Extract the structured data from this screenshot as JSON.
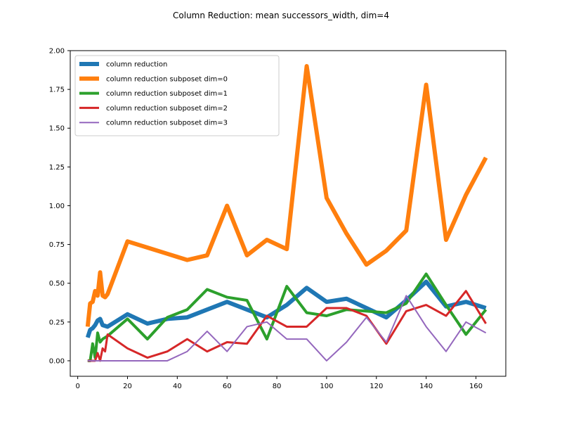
{
  "chart_data": {
    "type": "line",
    "title": "Column Reduction: mean successors_width, dim=4",
    "xlabel": "",
    "ylabel": "",
    "xlim": [
      -3.0,
      172.0
    ],
    "ylim": [
      -0.1,
      2.0
    ],
    "x_ticks": [
      0,
      20,
      40,
      60,
      80,
      100,
      120,
      140,
      160
    ],
    "y_ticks": [
      0.0,
      0.25,
      0.5,
      0.75,
      1.0,
      1.25,
      1.5,
      1.75,
      2.0
    ],
    "x_tick_labels": [
      "0",
      "20",
      "40",
      "60",
      "80",
      "100",
      "120",
      "140",
      "160"
    ],
    "y_tick_labels": [
      "0.00",
      "0.25",
      "0.50",
      "0.75",
      "1.00",
      "1.25",
      "1.50",
      "1.75",
      "2.00"
    ],
    "grid": false,
    "legend_position": "top-left",
    "series": [
      {
        "name": "column reduction",
        "color": "#1f77b4",
        "width": 6,
        "x": [
          4,
          5,
          6,
          7,
          8,
          9,
          10,
          12,
          20,
          28,
          36,
          44,
          52,
          60,
          68,
          76,
          84,
          92,
          100,
          108,
          116,
          124,
          132,
          140,
          148,
          156,
          164
        ],
        "y": [
          0.15,
          0.2,
          0.21,
          0.23,
          0.26,
          0.27,
          0.23,
          0.22,
          0.3,
          0.24,
          0.27,
          0.28,
          0.33,
          0.38,
          0.33,
          0.28,
          0.36,
          0.47,
          0.38,
          0.4,
          0.34,
          0.28,
          0.39,
          0.51,
          0.35,
          0.38,
          0.34
        ]
      },
      {
        "name": "column reduction subposet dim=0",
        "color": "#ff7f0e",
        "width": 6,
        "x": [
          4,
          5,
          6,
          7,
          8,
          9,
          10,
          11,
          12,
          20,
          28,
          36,
          44,
          52,
          60,
          68,
          76,
          84,
          92,
          100,
          108,
          116,
          124,
          132,
          140,
          148,
          156,
          164
        ],
        "y": [
          0.22,
          0.37,
          0.38,
          0.45,
          0.42,
          0.57,
          0.42,
          0.41,
          0.43,
          0.77,
          0.73,
          0.69,
          0.65,
          0.68,
          1.0,
          0.68,
          0.78,
          0.72,
          1.9,
          1.05,
          0.82,
          0.62,
          0.71,
          0.84,
          1.78,
          0.78,
          1.07,
          1.31
        ]
      },
      {
        "name": "column reduction subposet dim=1",
        "color": "#2ca02c",
        "width": 4,
        "x": [
          4,
          5,
          6,
          7,
          8,
          9,
          10,
          12,
          20,
          28,
          36,
          44,
          52,
          60,
          68,
          76,
          84,
          92,
          100,
          108,
          116,
          124,
          132,
          140,
          148,
          156,
          164
        ],
        "y": [
          0.0,
          0.0,
          0.11,
          0.02,
          0.18,
          0.12,
          0.14,
          0.16,
          0.27,
          0.14,
          0.28,
          0.33,
          0.46,
          0.41,
          0.39,
          0.14,
          0.48,
          0.31,
          0.29,
          0.33,
          0.32,
          0.31,
          0.37,
          0.56,
          0.36,
          0.17,
          0.33
        ]
      },
      {
        "name": "column reduction subposet dim=2",
        "color": "#d62728",
        "width": 3,
        "x": [
          4,
          5,
          6,
          7,
          8,
          9,
          10,
          11,
          12,
          20,
          28,
          36,
          44,
          52,
          60,
          68,
          76,
          84,
          92,
          100,
          108,
          116,
          124,
          132,
          140,
          148,
          156,
          164
        ],
        "y": [
          0.0,
          0.0,
          0.0,
          0.0,
          0.05,
          0.0,
          0.08,
          0.06,
          0.17,
          0.08,
          0.02,
          0.06,
          0.14,
          0.06,
          0.12,
          0.11,
          0.29,
          0.22,
          0.22,
          0.34,
          0.34,
          0.29,
          0.11,
          0.32,
          0.36,
          0.29,
          0.45,
          0.24
        ]
      },
      {
        "name": "column reduction subposet dim=3",
        "color": "#9467bd",
        "width": 2,
        "x": [
          4,
          5,
          6,
          7,
          8,
          9,
          10,
          12,
          20,
          28,
          36,
          44,
          52,
          60,
          68,
          76,
          84,
          92,
          100,
          108,
          116,
          124,
          132,
          140,
          148,
          156,
          164
        ],
        "y": [
          0.0,
          0.0,
          0.0,
          0.0,
          0.0,
          0.0,
          0.0,
          0.0,
          0.0,
          0.0,
          0.0,
          0.06,
          0.19,
          0.06,
          0.22,
          0.25,
          0.14,
          0.14,
          0.0,
          0.12,
          0.28,
          0.12,
          0.42,
          0.22,
          0.06,
          0.25,
          0.18
        ]
      }
    ]
  }
}
